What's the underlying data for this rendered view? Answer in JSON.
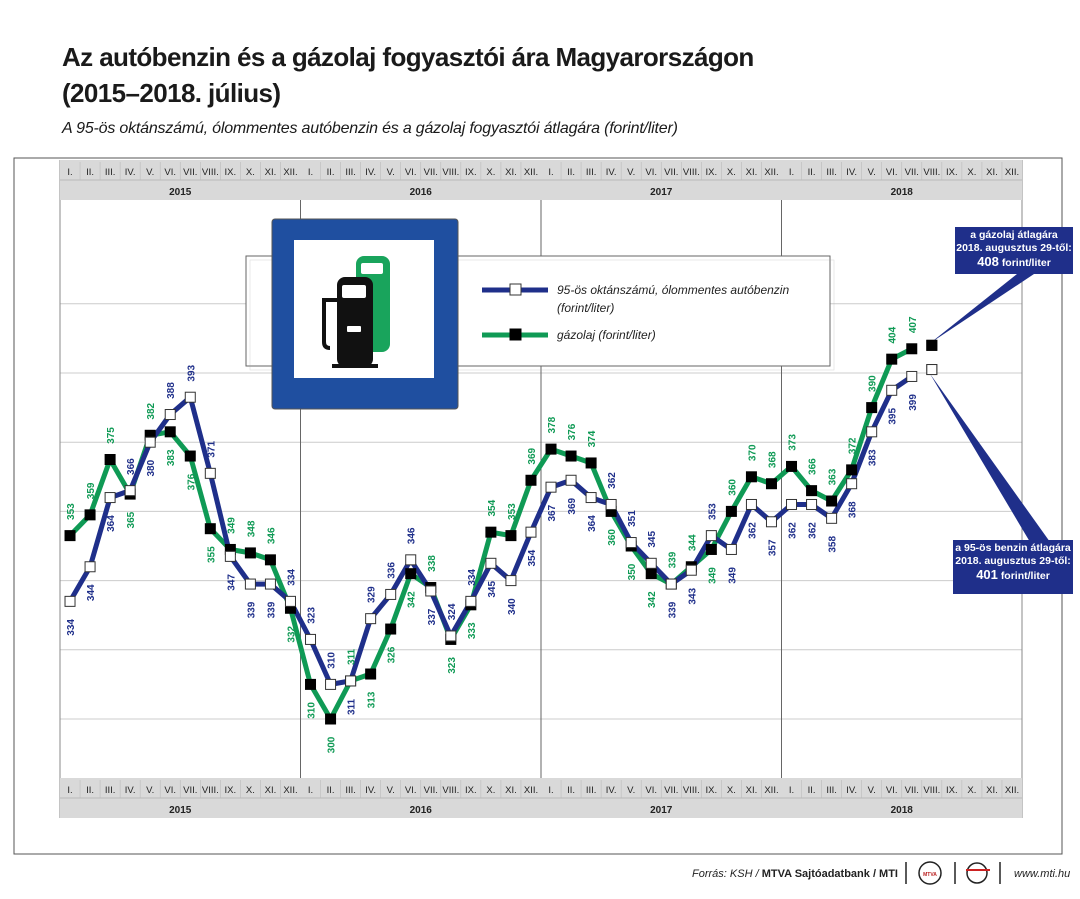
{
  "title_line1": "Az autóbenzin és a gázolaj fogyasztói ára Magyarországon",
  "title_line2": "(2015–2018. július)",
  "subtitle": "A 95-ös oktánszámú, ólommentes autóbenzin és a gázolaj fogyasztói átlagára (forint/liter)",
  "legend": {
    "petrol_label_line1": "95-ös oktánszámú, ólommentes autóbenzin",
    "petrol_label_line2": "(forint/liter)",
    "diesel_label": "gázolaj (forint/liter)"
  },
  "callout_diesel": {
    "line1": "a gázolaj átlagára",
    "line2": "2018. augusztus 29-től:",
    "value": "408",
    "unit": "forint/liter"
  },
  "callout_petrol": {
    "line1": "a 95-ös benzin átlagára",
    "line2": "2018. augusztus 29-től:",
    "value": "401",
    "unit": "forint/liter"
  },
  "source": {
    "prefix": "Forrás: KSH / ",
    "bold": "MTVA Sajtóadatbank / MTI"
  },
  "logo_text": "MTVA",
  "url": "www.mti.hu",
  "colors": {
    "petrol": "#1f2f8a",
    "diesel": "#0f9a55",
    "petrol_text": "#1f2f8a",
    "diesel_text": "#0f9a55",
    "axis_band": "#d9d9d9",
    "grid": "#cccccc",
    "sign_blue": "#1f4fa0"
  },
  "chart_data": {
    "type": "line",
    "month_labels": [
      "I.",
      "II.",
      "III.",
      "IV.",
      "V.",
      "VI.",
      "VII.",
      "VIII.",
      "IX.",
      "X.",
      "XI.",
      "XII."
    ],
    "years": [
      "2015",
      "2016",
      "2017",
      "2018"
    ],
    "categories": [
      "2015 I.",
      "2015 II.",
      "2015 III.",
      "2015 IV.",
      "2015 V.",
      "2015 VI.",
      "2015 VII.",
      "2015 VIII.",
      "2015 IX.",
      "2015 X.",
      "2015 XI.",
      "2015 XII.",
      "2016 I.",
      "2016 II.",
      "2016 III.",
      "2016 IV.",
      "2016 V.",
      "2016 VI.",
      "2016 VII.",
      "2016 VIII.",
      "2016 IX.",
      "2016 X.",
      "2016 XI.",
      "2016 XII.",
      "2017 I.",
      "2017 II.",
      "2017 III.",
      "2017 IV.",
      "2017 V.",
      "2017 VI.",
      "2017 VII.",
      "2017 VIII.",
      "2017 IX.",
      "2017 X.",
      "2017 XI.",
      "2017 XII.",
      "2018 I.",
      "2018 II.",
      "2018 III.",
      "2018 IV.",
      "2018 V.",
      "2018 VI.",
      "2018 VII.",
      "2018 VIII."
    ],
    "series": [
      {
        "name": "95-ös oktánszámú, ólommentes autóbenzin (forint/liter)",
        "values": [
          334,
          344,
          364,
          366,
          380,
          388,
          393,
          371,
          347,
          339,
          339,
          334,
          323,
          310,
          311,
          329,
          336,
          346,
          337,
          324,
          334,
          345,
          340,
          354,
          367,
          369,
          364,
          362,
          351,
          345,
          339,
          343,
          353,
          349,
          362,
          357,
          362,
          362,
          358,
          368,
          383,
          395,
          399,
          401
        ]
      },
      {
        "name": "gázolaj (forint/liter)",
        "values": [
          353,
          359,
          375,
          365,
          382,
          383,
          376,
          355,
          349,
          348,
          346,
          332,
          310,
          300,
          311,
          313,
          326,
          342,
          338,
          323,
          333,
          354,
          353,
          369,
          378,
          376,
          374,
          360,
          350,
          342,
          339,
          344,
          349,
          360,
          370,
          368,
          373,
          366,
          363,
          372,
          390,
          404,
          407,
          408
        ]
      }
    ],
    "ylim": [
      290,
      410
    ],
    "grid": true,
    "legend_position": "top-center"
  }
}
